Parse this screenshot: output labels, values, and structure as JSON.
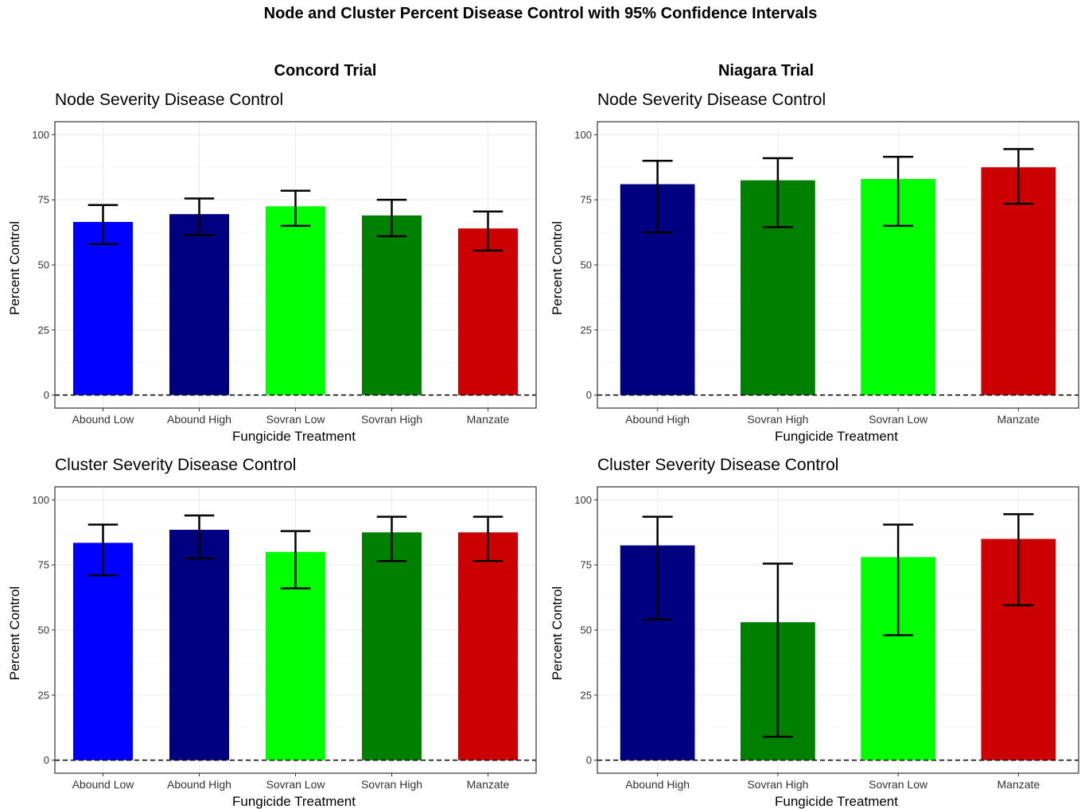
{
  "title": "Node and Cluster Percent Disease Control with 95% Confidence Intervals",
  "trials": [
    "Concord Trial",
    "Niagara Trial"
  ],
  "colors": {
    "Abound Low": "#0000ff",
    "Abound High": "#000080",
    "Sovran Low": "#00ff00",
    "Sovran High": "#008000",
    "Manzate": "#cc0000"
  },
  "chart_data": [
    {
      "type": "bar",
      "title": "Node Severity Disease Control",
      "xlabel": "Fungicide Treatment",
      "ylabel": "Percent Control",
      "ylim": [
        -5,
        105
      ],
      "yticks": [
        0,
        25,
        50,
        75,
        100
      ],
      "grid": true,
      "reference_line": 0,
      "categories": [
        "Abound Low",
        "Abound High",
        "Sovran Low",
        "Sovran High",
        "Manzate"
      ],
      "values": [
        66.5,
        69.5,
        72.5,
        69,
        64
      ],
      "ci_lower": [
        58,
        61.5,
        65,
        61,
        55.5
      ],
      "ci_upper": [
        73,
        75.5,
        78.5,
        75,
        70.5
      ]
    },
    {
      "type": "bar",
      "title": "Node Severity Disease Control",
      "xlabel": "Fungicide Treatment",
      "ylabel": "Percent Control",
      "ylim": [
        -5,
        105
      ],
      "yticks": [
        0,
        25,
        50,
        75,
        100
      ],
      "grid": true,
      "reference_line": 0,
      "categories": [
        "Abound High",
        "Sovran High",
        "Sovran Low",
        "Manzate"
      ],
      "values": [
        81,
        82.5,
        83,
        87.5
      ],
      "ci_lower": [
        62.5,
        64.5,
        65,
        73.5
      ],
      "ci_upper": [
        90,
        91,
        91.5,
        94.5
      ]
    },
    {
      "type": "bar",
      "title": "Cluster Severity Disease Control",
      "xlabel": "Fungicide Treatment",
      "ylabel": "Percent Control",
      "ylim": [
        -5,
        105
      ],
      "yticks": [
        0,
        25,
        50,
        75,
        100
      ],
      "grid": true,
      "reference_line": 0,
      "categories": [
        "Abound Low",
        "Abound High",
        "Sovran Low",
        "Sovran High",
        "Manzate"
      ],
      "values": [
        83.5,
        88.5,
        80,
        87.5,
        87.5
      ],
      "ci_lower": [
        71,
        77.5,
        66,
        76.5,
        76.5
      ],
      "ci_upper": [
        90.5,
        94,
        88,
        93.5,
        93.5
      ]
    },
    {
      "type": "bar",
      "title": "Cluster Severity Disease Control",
      "xlabel": "Fungicide Treatment",
      "ylabel": "Percent Control",
      "ylim": [
        -5,
        105
      ],
      "yticks": [
        0,
        25,
        50,
        75,
        100
      ],
      "grid": true,
      "reference_line": 0,
      "categories": [
        "Abound High",
        "Sovran High",
        "Sovran Low",
        "Manzate"
      ],
      "values": [
        82.5,
        53,
        78,
        85
      ],
      "ci_lower": [
        54,
        9,
        48,
        59.5
      ],
      "ci_upper": [
        93.5,
        75.5,
        90.5,
        94.5
      ]
    }
  ]
}
